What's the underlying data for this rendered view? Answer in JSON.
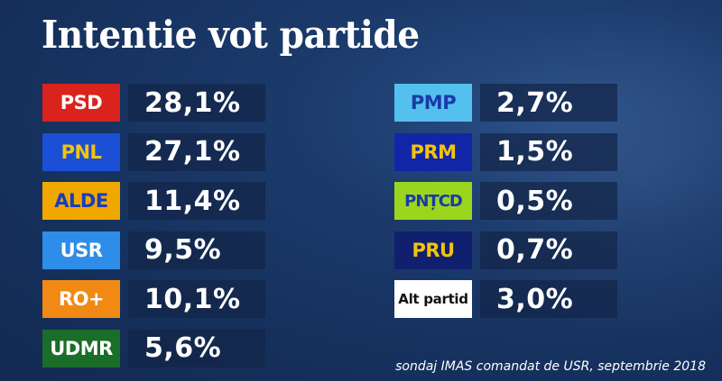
{
  "title": "Intentie vot partide",
  "source": "sondaj IMAS comandat de USR, septembrie 2018",
  "chart_data": {
    "type": "table",
    "title": "Intentie vot partide",
    "columns": [
      [
        {
          "party": "PSD",
          "value_text": "28,1%",
          "value": 28.1,
          "badge_bg": "#d9231c",
          "badge_fg": "#ffffff"
        },
        {
          "party": "PNL",
          "value_text": "27,1%",
          "value": 27.1,
          "badge_bg": "#1a4fd6",
          "badge_fg": "#f2c40c"
        },
        {
          "party": "ALDE",
          "value_text": "11,4%",
          "value": 11.4,
          "badge_bg": "#f0a800",
          "badge_fg": "#1a3db8"
        },
        {
          "party": "USR",
          "value_text": "9,5%",
          "value": 9.5,
          "badge_bg": "#2e8de8",
          "badge_fg": "#ffffff"
        },
        {
          "party": "RO+",
          "value_text": "10,1%",
          "value": 10.1,
          "badge_bg": "#f08a14",
          "badge_fg": "#ffffff"
        },
        {
          "party": "UDMR",
          "value_text": "5,6%",
          "value": 5.6,
          "badge_bg": "#1b6d2a",
          "badge_fg": "#ffffff"
        }
      ],
      [
        {
          "party": "PMP",
          "value_text": "2,7%",
          "value": 2.7,
          "badge_bg": "#54c0ee",
          "badge_fg": "#1a3aa8"
        },
        {
          "party": "PRM",
          "value_text": "1,5%",
          "value": 1.5,
          "badge_bg": "#1126a6",
          "badge_fg": "#f2c40c"
        },
        {
          "party": "PNȚCD",
          "value_text": "0,5%",
          "value": 0.5,
          "badge_bg": "#9bd61f",
          "badge_fg": "#1a3aa8"
        },
        {
          "party": "PRU",
          "value_text": "0,7%",
          "value": 0.7,
          "badge_bg": "#10206e",
          "badge_fg": "#f2c40c"
        },
        {
          "party": "Alt partid",
          "value_text": "3,0%",
          "value": 3.0,
          "badge_bg": "#ffffff",
          "badge_fg": "#111111"
        }
      ]
    ]
  }
}
